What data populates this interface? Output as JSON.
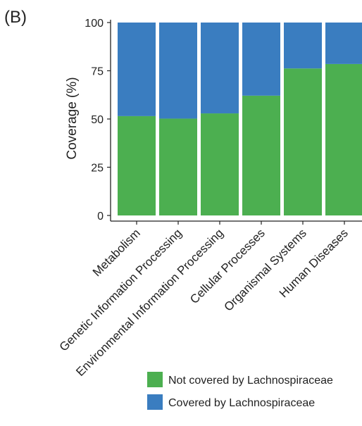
{
  "panel_label": "(B)",
  "colors": {
    "not_covered": "#4CAF50",
    "covered": "#3A7DC0"
  },
  "chart_data": {
    "type": "bar",
    "stacked": true,
    "ylabel": "Coverage (%)",
    "ylim": [
      0,
      100
    ],
    "yticks": [
      0,
      25,
      50,
      75,
      100
    ],
    "categories": [
      "Metabolism",
      "Genetic Information Processing",
      "Environmental Information Processing",
      "Cellular Processes",
      "Organismal Systems",
      "Human Diseases"
    ],
    "series": [
      {
        "name": "Not covered by Lachnospiraceae",
        "values": [
          51.5,
          50.2,
          52.9,
          62.1,
          76.2,
          78.5
        ]
      },
      {
        "name": "Covered by Lachnospiraceae",
        "values": [
          48.5,
          49.8,
          47.1,
          37.9,
          23.8,
          21.5
        ]
      }
    ],
    "legend": "bottom-right"
  }
}
